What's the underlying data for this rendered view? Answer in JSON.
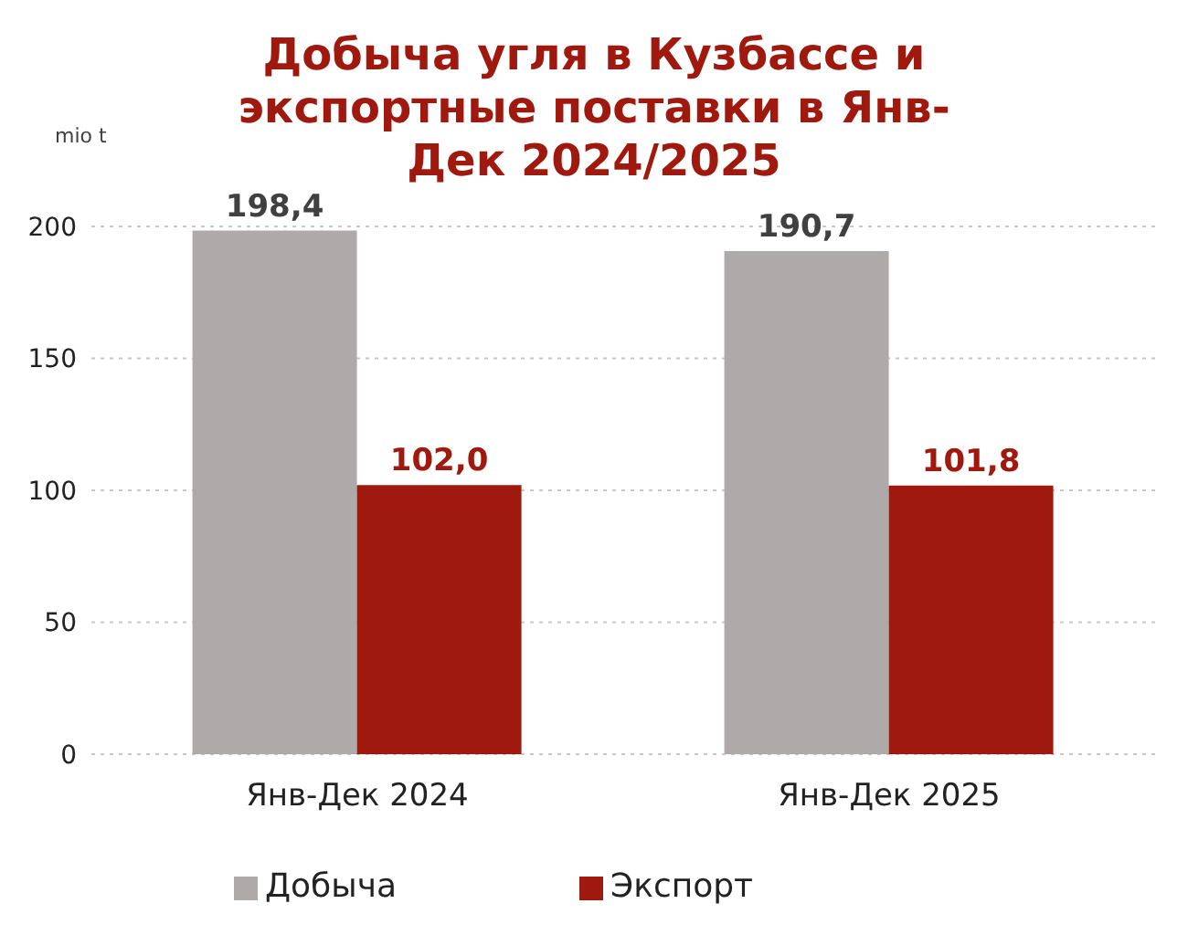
{
  "chart_data": {
    "type": "bar",
    "title": "Добыча угля в Кузбассе и экспортные поставки в Янв-Дек 2024/2025",
    "ylabel": "mio t",
    "categories": [
      "Янв-Дек 2024",
      "Янв-Дек 2025"
    ],
    "series": [
      {
        "name": "Добыча",
        "color": "#aeaaaa",
        "values": [
          198.4,
          190.7
        ],
        "value_labels": [
          "198,4",
          "190,7"
        ]
      },
      {
        "name": "Экспорт",
        "color": "#a0190f",
        "values": [
          102.0,
          101.8
        ],
        "value_labels": [
          "102,0",
          "101,8"
        ]
      }
    ],
    "ylim": [
      0,
      200
    ],
    "yticks": [
      0,
      50,
      100,
      150,
      200
    ],
    "grid": "y",
    "legend": "bottom"
  }
}
